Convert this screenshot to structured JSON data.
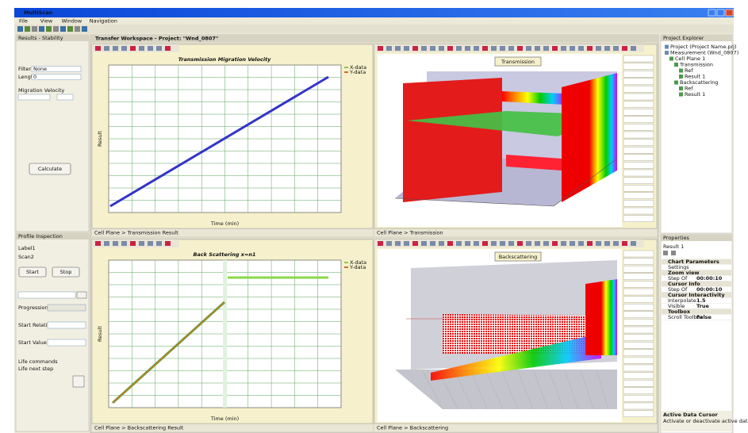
{
  "app": {
    "title": "MultiScan",
    "menu": [
      "File",
      "View",
      "Window",
      "Navigation"
    ]
  },
  "left_top": {
    "title": "Results - Stability",
    "fields": [
      {
        "label": "Filter",
        "value": "None"
      },
      {
        "label": "Length",
        "value": "0"
      }
    ],
    "section": "Migration Velocity",
    "button": "Calculate"
  },
  "left_bottom": {
    "title": "Profile Inspection",
    "labels": [
      "Label1",
      "Scan2"
    ],
    "buttons": [
      "Start",
      "Stop"
    ],
    "rows": [
      "Progression",
      "Start Relative",
      "Start Value"
    ],
    "notes": [
      "Life commands",
      "Life next step"
    ]
  },
  "workspace": {
    "tab": "Transfer Workspace - Project: \"Wnd_0807\"",
    "charts": [
      {
        "title": "Transmission Migration Velocity",
        "legend": [
          "X-data",
          "Y-data"
        ],
        "x_label": "Time (min)",
        "y_label": "Result",
        "footer": "Cell Plane > Transmission Result"
      },
      {
        "title": "Transmission",
        "footer": "Cell Plane > Transmission"
      },
      {
        "title": "Back Scattering x=n1",
        "legend": [
          "X-data",
          "Y-data"
        ],
        "x_label": "Time (min)",
        "y_label": "Result",
        "footer": "Cell Plane > Backscattering Result"
      },
      {
        "title": "Backscattering",
        "footer": "Cell Plane > Backscattering"
      }
    ]
  },
  "right_top": {
    "title": "Project Explorer",
    "tree": [
      "Project (Project Name.prj)",
      "Measurement (Wnd_0807)",
      "Cell Plane 1",
      "Transmission",
      "Ref",
      "Result 1",
      "Backscattering",
      "Ref",
      "Result 1"
    ]
  },
  "right_bottom": {
    "title": "Properties",
    "object": "Result 1",
    "groups": [
      {
        "name": "Chart Parameters",
        "rows": [
          [
            "Settings",
            ""
          ]
        ]
      },
      {
        "name": "Zoom view",
        "rows": [
          [
            "Step Of",
            "00:00:10"
          ]
        ]
      },
      {
        "name": "Cursor Info",
        "rows": [
          [
            "Step Of",
            "00:00:10"
          ]
        ]
      },
      {
        "name": "Cursor Interactivity",
        "rows": [
          [
            "Interpolate",
            "1.5"
          ],
          [
            "Visible",
            "True"
          ]
        ]
      },
      {
        "name": "Toolbox",
        "rows": [
          [
            "Scroll Toolbox",
            "False"
          ]
        ]
      }
    ],
    "footer_title": "Active Data Cursor",
    "footer_text": "Activate or deactivate active data cursor"
  }
}
